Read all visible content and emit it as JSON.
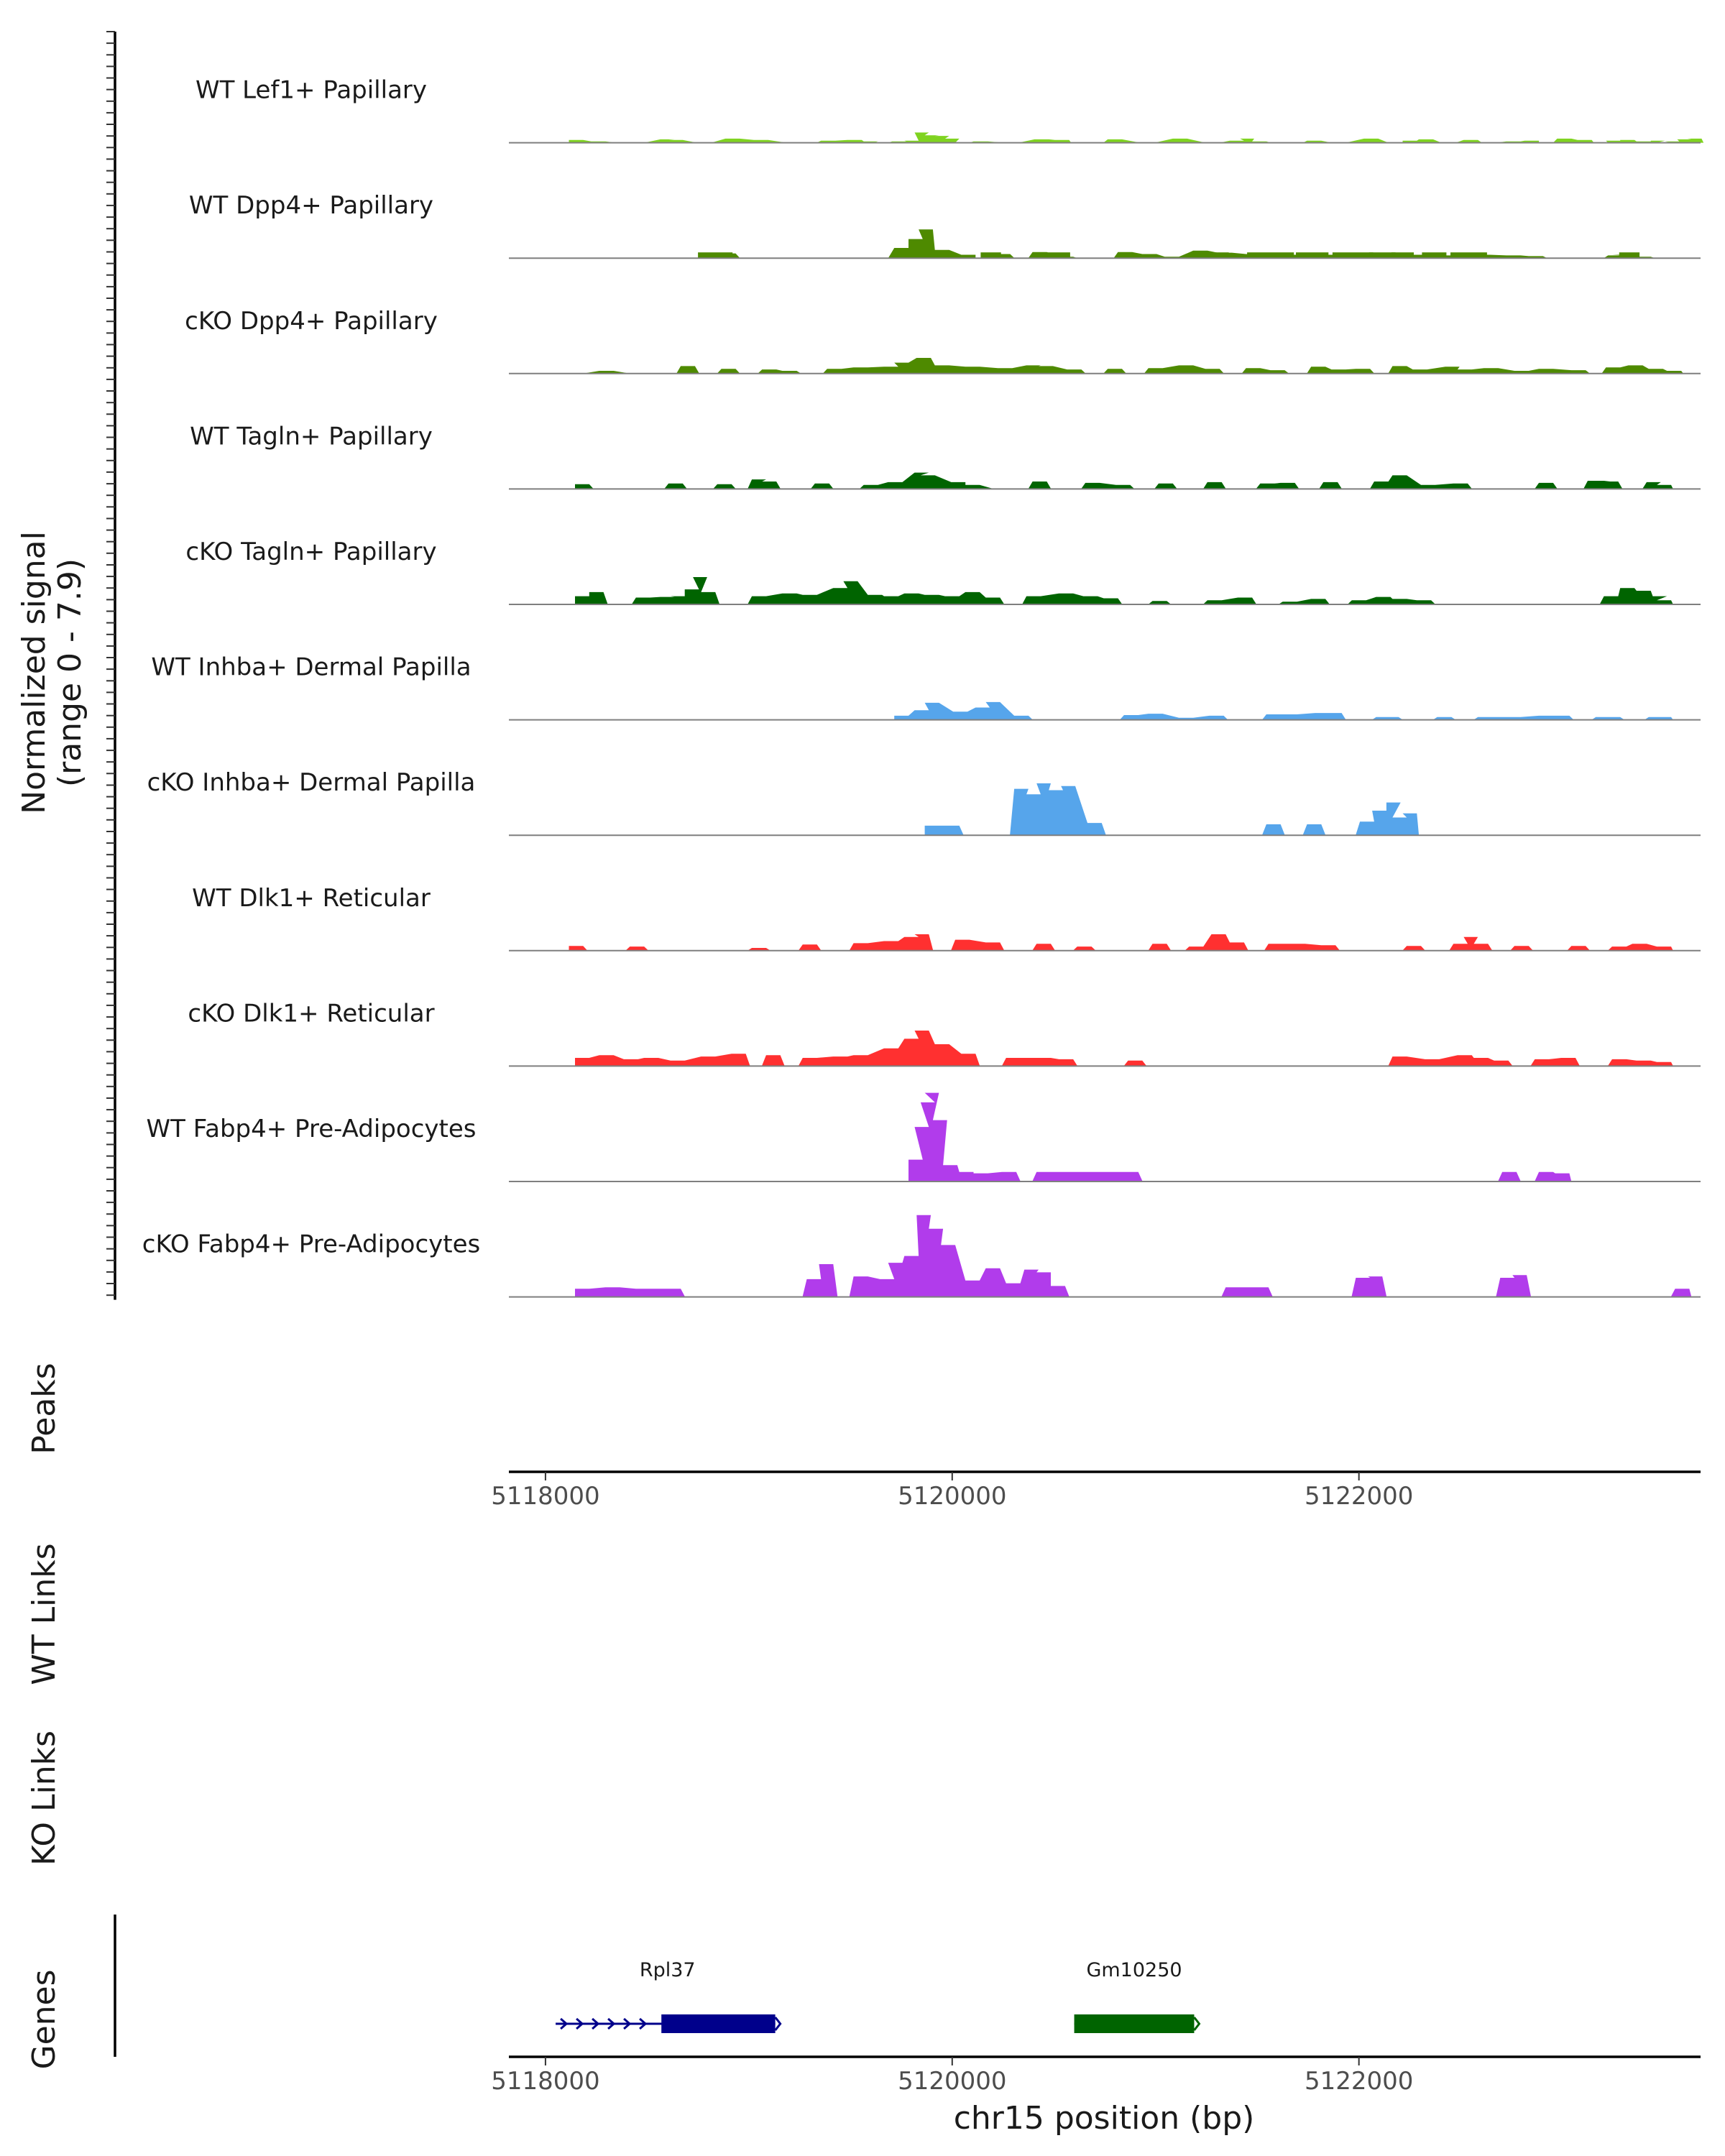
{
  "chart_data": {
    "type": "area",
    "title": "",
    "ylabel": "Normalized signal",
    "ylabel_range": "(range 0 - 7.9)",
    "ylim": [
      0,
      7.9
    ],
    "xlabel": "chr15 position (bp)",
    "xlim": [
      5117820,
      5123680
    ],
    "x_ticks": [
      5118000,
      5120000,
      5122000
    ],
    "x_tick_labels": [
      "5118000",
      "5120000",
      "5122000"
    ],
    "tracks": [
      {
        "name": "WT Lef1+ Papillary",
        "color": "#7FD320",
        "x": [
          5118150,
          5118260,
          5118380,
          5118450,
          5118600,
          5118640,
          5118780,
          5118920,
          5119060,
          5119220,
          5119390,
          5119520,
          5119600,
          5119650,
          5119740,
          5119800,
          5119850,
          5119900,
          5119950,
          5120000,
          5120050,
          5120140,
          5120290,
          5120440,
          5120540,
          5120620,
          5120800,
          5120960,
          5121120,
          5121280,
          5121400,
          5121450,
          5121510,
          5121690,
          5121780,
          5121900,
          5122060,
          5122180,
          5122250,
          5122330,
          5122440,
          5122550,
          5122640,
          5122760,
          5122850,
          5122920,
          5123010,
          5123110,
          5123190,
          5123250,
          5123320,
          5123400,
          5123470,
          5123500,
          5123540,
          5123600,
          5123650
        ],
        "values": [
          0.2,
          0.1,
          0,
          0,
          0.25,
          0.2,
          0,
          0.3,
          0.2,
          0,
          0.15,
          0.2,
          0.1,
          0,
          0.1,
          0.15,
          0.75,
          0.55,
          0.5,
          0.3,
          0,
          0.1,
          0,
          0.25,
          0.2,
          0,
          0.25,
          0,
          0.3,
          0,
          0.15,
          0.3,
          0.1,
          0,
          0.15,
          0,
          0.3,
          0,
          0.15,
          0.25,
          0,
          0.2,
          0,
          0.1,
          0.15,
          0,
          0.3,
          0.2,
          0,
          0.15,
          0.2,
          0.1,
          0.15,
          0,
          0.1,
          0.25,
          0.3
        ]
      },
      {
        "name": "WT Dpp4+ Papillary",
        "color": "#4E8A00",
        "x": [
          5118800,
          5118900,
          5119650,
          5119750,
          5119820,
          5119870,
          5119950,
          5120080,
          5120150,
          5120250,
          5120430,
          5120560,
          5120850,
          5120970,
          5121080,
          5121220,
          5121340,
          5121480,
          5121600,
          5121720,
          5121880,
          5121990,
          5122130,
          5122300,
          5122400,
          5122540,
          5122610,
          5122760,
          5122870,
          5123260,
          5123280,
          5123400,
          5123600
        ],
        "values": [
          0.4,
          0.35,
          0,
          0.75,
          1.4,
          2.1,
          0.6,
          0.25,
          0,
          0.3,
          0.45,
          0.1,
          0.45,
          0.3,
          0.1,
          0.55,
          0.4,
          0.3,
          0.25,
          0.25,
          0.25,
          0.3,
          0.2,
          0.25,
          0.2,
          0.2,
          0.25,
          0.2,
          0.15,
          0.2,
          0.25,
          0.1,
          0
        ],
        "base_segments": [
          [
            5118750,
            5118920
          ],
          [
            5119720,
            5119990
          ],
          [
            5120140,
            5120240
          ],
          [
            5120420,
            5120580
          ],
          [
            5121220,
            5121360
          ],
          [
            5121450,
            5121680
          ],
          [
            5121690,
            5121850
          ],
          [
            5121870,
            5122070
          ],
          [
            5122050,
            5122180
          ],
          [
            5122160,
            5122270
          ],
          [
            5122310,
            5122430
          ],
          [
            5122450,
            5122630
          ],
          [
            5123280,
            5123380
          ]
        ]
      },
      {
        "name": "cKO Dpp4+ Papillary",
        "color": "#4E8A00",
        "x": [
          5118150,
          5118300,
          5118450,
          5118700,
          5118900,
          5119100,
          5119200,
          5119420,
          5119550,
          5119700,
          5119750,
          5119860,
          5119950,
          5120100,
          5120260,
          5120400,
          5120460,
          5120600,
          5120800,
          5121000,
          5121150,
          5121280,
          5121480,
          5121600,
          5121800,
          5121900,
          5122020,
          5122200,
          5122300,
          5122460,
          5122520,
          5122650,
          5122800,
          5122920,
          5123080,
          5123250,
          5123360,
          5123460,
          5123550
        ],
        "values": [
          0,
          0.2,
          0,
          0.55,
          0.35,
          0.3,
          0.2,
          0.35,
          0.45,
          0.5,
          0.8,
          1.15,
          0.6,
          0.5,
          0.4,
          0.6,
          0.55,
          0.3,
          0.35,
          0.4,
          0.6,
          0.35,
          0.4,
          0.25,
          0.5,
          0.3,
          0.35,
          0.55,
          0.3,
          0.5,
          0.3,
          0.4,
          0.2,
          0.35,
          0.25,
          0.45,
          0.6,
          0.35,
          0.2
        ]
      },
      {
        "name": "WT Tagln+ Papillary",
        "color": "#006400",
        "x": [
          5118180,
          5118400,
          5118640,
          5118880,
          5119050,
          5119100,
          5119360,
          5119600,
          5119720,
          5119850,
          5119880,
          5120030,
          5120100,
          5120240,
          5120430,
          5120690,
          5120840,
          5121050,
          5121290,
          5121550,
          5121650,
          5121860,
          5122110,
          5122200,
          5122340,
          5122500,
          5122920,
          5123160,
          5123200,
          5123240,
          5123450,
          5123500
        ],
        "values": [
          0.35,
          0,
          0.4,
          0.35,
          0.7,
          0.55,
          0.4,
          0.3,
          0.5,
          1.2,
          1.0,
          0.5,
          0.3,
          0,
          0.55,
          0.45,
          0.3,
          0.4,
          0.5,
          0.4,
          0.45,
          0.5,
          0.55,
          1.0,
          0.3,
          0.4,
          0.45,
          0.6,
          0.6,
          0.55,
          0.5,
          0.3
        ]
      },
      {
        "name": "cKO Tagln+ Papillary",
        "color": "#006400",
        "x": [
          5118180,
          5118250,
          5118480,
          5118600,
          5118650,
          5118720,
          5118760,
          5118800,
          5119050,
          5119200,
          5119300,
          5119450,
          5119500,
          5119620,
          5119700,
          5119800,
          5119900,
          5120000,
          5120100,
          5120200,
          5120400,
          5120560,
          5120680,
          5120780,
          5121020,
          5121290,
          5121440,
          5121660,
          5121800,
          5122000,
          5122120,
          5122200,
          5122320,
          5123240,
          5123320,
          5123400,
          5123480,
          5123500
        ],
        "values": [
          0.6,
          0.9,
          0.5,
          0.55,
          0.6,
          1.1,
          2.0,
          0.9,
          0.6,
          0.8,
          0.7,
          1.2,
          1.7,
          0.7,
          0.6,
          0.8,
          0.7,
          0.6,
          0.9,
          0.5,
          0.6,
          0.8,
          0.6,
          0.45,
          0.25,
          0.3,
          0.5,
          0.2,
          0.4,
          0.3,
          0.55,
          0.4,
          0.3,
          0.6,
          1.2,
          1.0,
          0.6,
          0.3
        ]
      },
      {
        "name": "WT Inhba+ Dermal Papilla",
        "color": "#56A5EB",
        "x": [
          5119750,
          5119850,
          5119900,
          5120040,
          5120150,
          5120200,
          5120340,
          5120880,
          5121000,
          5121150,
          5121300,
          5121580,
          5121660,
          5121820,
          5121880,
          5122120,
          5122160,
          5122420,
          5122620,
          5122760,
          5122920,
          5123000,
          5123200,
          5123250,
          5123460,
          5123500
        ],
        "values": [
          0.3,
          0.7,
          1.25,
          0.6,
          0.9,
          1.3,
          0.3,
          0.35,
          0.45,
          0.15,
          0.3,
          0.4,
          0.4,
          0.5,
          0.5,
          0.2,
          0.2,
          0.2,
          0.2,
          0.2,
          0.3,
          0.3,
          0.2,
          0.2,
          0.2,
          0.2
        ]
      },
      {
        "name": "cKO Inhba+ Dermal Papilla",
        "color": "#56A5EB",
        "x": [
          5119900,
          5120000,
          5120340,
          5120400,
          5120450,
          5120510,
          5120570,
          5120700,
          5121580,
          5121780,
          5122040,
          5122100,
          5122170,
          5122200,
          5122250
        ],
        "values": [
          0.7,
          0.7,
          3.4,
          3.0,
          3.8,
          3.3,
          3.6,
          0.9,
          0.8,
          0.8,
          1.0,
          1.8,
          2.4,
          1.3,
          1.6
        ]
      },
      {
        "name": "WT Dlk1+ Reticular",
        "color": "#FF3030",
        "x": [
          5118150,
          5118450,
          5119050,
          5119300,
          5119550,
          5119700,
          5119800,
          5119850,
          5120050,
          5120200,
          5120450,
          5120650,
          5121020,
          5121200,
          5121310,
          5121400,
          5121590,
          5121700,
          5121850,
          5122270,
          5122500,
          5122550,
          5122600,
          5122800,
          5123080,
          5123280,
          5123380,
          5123500
        ],
        "values": [
          0.35,
          0.3,
          0.2,
          0.45,
          0.55,
          0.7,
          1.0,
          1.2,
          0.8,
          0.6,
          0.5,
          0.3,
          0.5,
          0.3,
          1.2,
          0.6,
          0.5,
          0.5,
          0.4,
          0.35,
          0.5,
          1.0,
          0.5,
          0.35,
          0.35,
          0.3,
          0.5,
          0.3
        ]
      },
      {
        "name": "cKO Dlk1+ Reticular",
        "color": "#FF3030",
        "x": [
          5118180,
          5118300,
          5118420,
          5118520,
          5118650,
          5118800,
          5118950,
          5119120,
          5119300,
          5119450,
          5119550,
          5119700,
          5119800,
          5119850,
          5119950,
          5120080,
          5120300,
          5120450,
          5120560,
          5120900,
          5122200,
          5122360,
          5122520,
          5122600,
          5122700,
          5122900,
          5123030,
          5123280,
          5123400,
          5123500
        ],
        "values": [
          0.6,
          0.8,
          0.5,
          0.6,
          0.4,
          0.7,
          0.9,
          0.8,
          0.6,
          0.7,
          0.8,
          1.3,
          2.0,
          2.6,
          1.6,
          0.9,
          0.6,
          0.6,
          0.5,
          0.4,
          0.7,
          0.5,
          0.8,
          0.6,
          0.4,
          0.5,
          0.6,
          0.5,
          0.4,
          0.3
        ]
      },
      {
        "name": "WT Fabp4+ Pre-Adipocytes",
        "color": "#B13CEB",
        "x": [
          5119820,
          5119850,
          5119880,
          5119900,
          5119940,
          5119990,
          5120070,
          5120140,
          5120280,
          5120450,
          5120600,
          5120740,
          5120880,
          5122740,
          5122920,
          5123000
        ],
        "values": [
          1.6,
          4.0,
          5.8,
          6.5,
          4.5,
          1.2,
          0.7,
          0.6,
          0.7,
          0.7,
          0.7,
          0.7,
          0.7,
          0.7,
          0.7,
          0.6
        ]
      },
      {
        "name": "cKO Fabp4+ Pre-Adipocytes",
        "color": "#B13CEB",
        "x": [
          5118180,
          5118330,
          5118480,
          5118630,
          5119320,
          5119380,
          5119550,
          5119680,
          5119720,
          5119800,
          5119860,
          5119920,
          5119980,
          5120100,
          5120200,
          5120300,
          5120390,
          5120450,
          5120520,
          5121380,
          5121520,
          5122020,
          5122080,
          5122730,
          5122790,
          5123590
        ],
        "values": [
          0.6,
          0.7,
          0.6,
          0.6,
          1.3,
          2.4,
          1.5,
          1.3,
          2.5,
          3.0,
          6.0,
          5.0,
          3.8,
          1.2,
          2.1,
          1.0,
          2.0,
          1.8,
          0.8,
          0.7,
          0.7,
          1.4,
          1.5,
          1.4,
          1.6,
          0.6
        ]
      }
    ],
    "panels": [
      "Peaks",
      "WT Links",
      "KO Links",
      "Genes"
    ],
    "genes": [
      {
        "name": "Rpl37",
        "start": 5118050,
        "end": 5119130,
        "cds_start": 5118570,
        "strand": "+",
        "color": "#00008B"
      },
      {
        "name": "Gm10250",
        "start": 5120600,
        "end": 5121190,
        "cds_start": 5120600,
        "strand": "+",
        "color": "#006400"
      }
    ]
  }
}
